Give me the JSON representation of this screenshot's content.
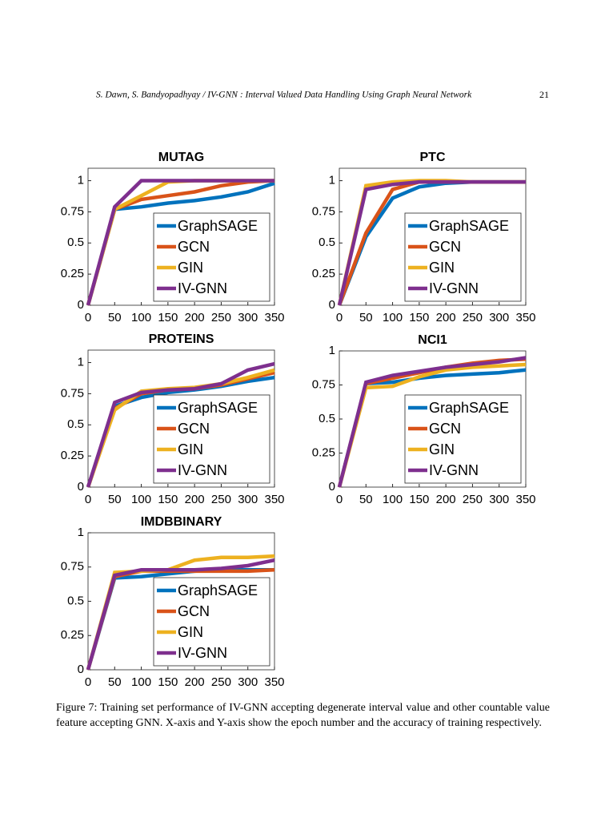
{
  "header": {
    "text": "S. Dawn, S. Bandyopadhyay  / IV-GNN : Interval Valued Data Handling Using Graph Neural Network",
    "page": "21"
  },
  "chart_data": [
    {
      "type": "line",
      "title": "MUTAG",
      "x": [
        0,
        50,
        100,
        150,
        200,
        250,
        300,
        350
      ],
      "xlim": [
        0,
        350
      ],
      "xticks": [
        0,
        50,
        100,
        150,
        200,
        250,
        300,
        350
      ],
      "ylim": [
        0,
        1.1
      ],
      "yticks": [
        0,
        0.25,
        0.5,
        0.75,
        1
      ],
      "legend": "lower right",
      "series": [
        {
          "name": "GraphSAGE",
          "color": "#0072BD",
          "values": [
            0,
            0.77,
            0.79,
            0.82,
            0.84,
            0.87,
            0.91,
            0.98
          ]
        },
        {
          "name": "GCN",
          "color": "#D95319",
          "values": [
            0,
            0.77,
            0.85,
            0.88,
            0.91,
            0.96,
            0.99,
            1
          ]
        },
        {
          "name": "GIN",
          "color": "#EDB120",
          "values": [
            0,
            0.77,
            0.88,
            0.99,
            1,
            1,
            1,
            1
          ]
        },
        {
          "name": "IV-GNN",
          "color": "#7E2F8E",
          "values": [
            0,
            0.79,
            1,
            1,
            1,
            1,
            1,
            1
          ]
        }
      ]
    },
    {
      "type": "line",
      "title": "PTC",
      "x": [
        0,
        50,
        100,
        150,
        200,
        250,
        300,
        350
      ],
      "xlim": [
        0,
        350
      ],
      "xticks": [
        0,
        50,
        100,
        150,
        200,
        250,
        300,
        350
      ],
      "ylim": [
        0,
        1.1
      ],
      "yticks": [
        0,
        0.25,
        0.5,
        0.75,
        1
      ],
      "legend": "lower right",
      "series": [
        {
          "name": "GraphSAGE",
          "color": "#0072BD",
          "values": [
            0,
            0.55,
            0.86,
            0.95,
            0.98,
            0.99,
            0.99,
            0.99
          ]
        },
        {
          "name": "GCN",
          "color": "#D95319",
          "values": [
            0,
            0.58,
            0.93,
            0.99,
            0.99,
            0.99,
            0.99,
            0.99
          ]
        },
        {
          "name": "GIN",
          "color": "#EDB120",
          "values": [
            0,
            0.96,
            0.99,
            1,
            1,
            0.99,
            0.99,
            0.99
          ]
        },
        {
          "name": "IV-GNN",
          "color": "#7E2F8E",
          "values": [
            0,
            0.93,
            0.97,
            0.99,
            0.99,
            0.99,
            0.99,
            0.99
          ]
        }
      ]
    },
    {
      "type": "line",
      "title": "PROTEINS",
      "x": [
        0,
        50,
        100,
        150,
        200,
        250,
        300,
        350
      ],
      "xlim": [
        0,
        350
      ],
      "xticks": [
        0,
        50,
        100,
        150,
        200,
        250,
        300,
        350
      ],
      "ylim": [
        0,
        1.1
      ],
      "yticks": [
        0,
        0.25,
        0.5,
        0.75,
        1
      ],
      "legend": "lower right",
      "series": [
        {
          "name": "GraphSAGE",
          "color": "#0072BD",
          "values": [
            0,
            0.65,
            0.72,
            0.76,
            0.78,
            0.81,
            0.85,
            0.88
          ]
        },
        {
          "name": "GCN",
          "color": "#D95319",
          "values": [
            0,
            0.63,
            0.75,
            0.78,
            0.79,
            0.82,
            0.87,
            0.92
          ]
        },
        {
          "name": "GIN",
          "color": "#EDB120",
          "values": [
            0,
            0.62,
            0.77,
            0.79,
            0.8,
            0.83,
            0.88,
            0.94
          ]
        },
        {
          "name": "IV-GNN",
          "color": "#7E2F8E",
          "values": [
            0,
            0.68,
            0.76,
            0.78,
            0.79,
            0.83,
            0.94,
            0.99
          ]
        }
      ]
    },
    {
      "type": "line",
      "title": "NCI1",
      "x": [
        0,
        50,
        100,
        150,
        200,
        250,
        300,
        350
      ],
      "xlim": [
        0,
        350
      ],
      "xticks": [
        0,
        50,
        100,
        150,
        200,
        250,
        300,
        350
      ],
      "ylim": [
        0,
        1
      ],
      "yticks": [
        0,
        0.25,
        0.5,
        0.75,
        1
      ],
      "legend": "lower right",
      "series": [
        {
          "name": "GraphSAGE",
          "color": "#0072BD",
          "values": [
            0,
            0.76,
            0.77,
            0.8,
            0.82,
            0.83,
            0.84,
            0.86
          ]
        },
        {
          "name": "GCN",
          "color": "#D95319",
          "values": [
            0,
            0.76,
            0.8,
            0.84,
            0.88,
            0.91,
            0.93,
            0.94
          ]
        },
        {
          "name": "GIN",
          "color": "#EDB120",
          "values": [
            0,
            0.73,
            0.74,
            0.81,
            0.86,
            0.88,
            0.89,
            0.9
          ]
        },
        {
          "name": "IV-GNN",
          "color": "#7E2F8E",
          "values": [
            0,
            0.77,
            0.82,
            0.85,
            0.88,
            0.9,
            0.92,
            0.95
          ]
        }
      ]
    },
    {
      "type": "line",
      "title": "IMDBBINARY",
      "x": [
        0,
        50,
        100,
        150,
        200,
        250,
        300,
        350
      ],
      "xlim": [
        0,
        350
      ],
      "xticks": [
        0,
        50,
        100,
        150,
        200,
        250,
        300,
        350
      ],
      "ylim": [
        0,
        1
      ],
      "yticks": [
        0,
        0.25,
        0.5,
        0.75,
        1
      ],
      "legend": "lower right",
      "series": [
        {
          "name": "GraphSAGE",
          "color": "#0072BD",
          "values": [
            0,
            0.67,
            0.68,
            0.7,
            0.72,
            0.73,
            0.73,
            0.73
          ]
        },
        {
          "name": "GCN",
          "color": "#D95319",
          "values": [
            0,
            0.68,
            0.72,
            0.72,
            0.72,
            0.72,
            0.72,
            0.73
          ]
        },
        {
          "name": "GIN",
          "color": "#EDB120",
          "values": [
            0,
            0.71,
            0.72,
            0.73,
            0.8,
            0.82,
            0.82,
            0.83
          ]
        },
        {
          "name": "IV-GNN",
          "color": "#7E2F8E",
          "values": [
            0,
            0.69,
            0.73,
            0.73,
            0.73,
            0.74,
            0.76,
            0.8
          ]
        }
      ]
    }
  ],
  "caption": "Figure 7: Training set performance of IV-GNN accepting degenerate interval value and other countable value feature accepting GNN. X-axis and Y-axis show the epoch number and the accuracy of training respectively."
}
